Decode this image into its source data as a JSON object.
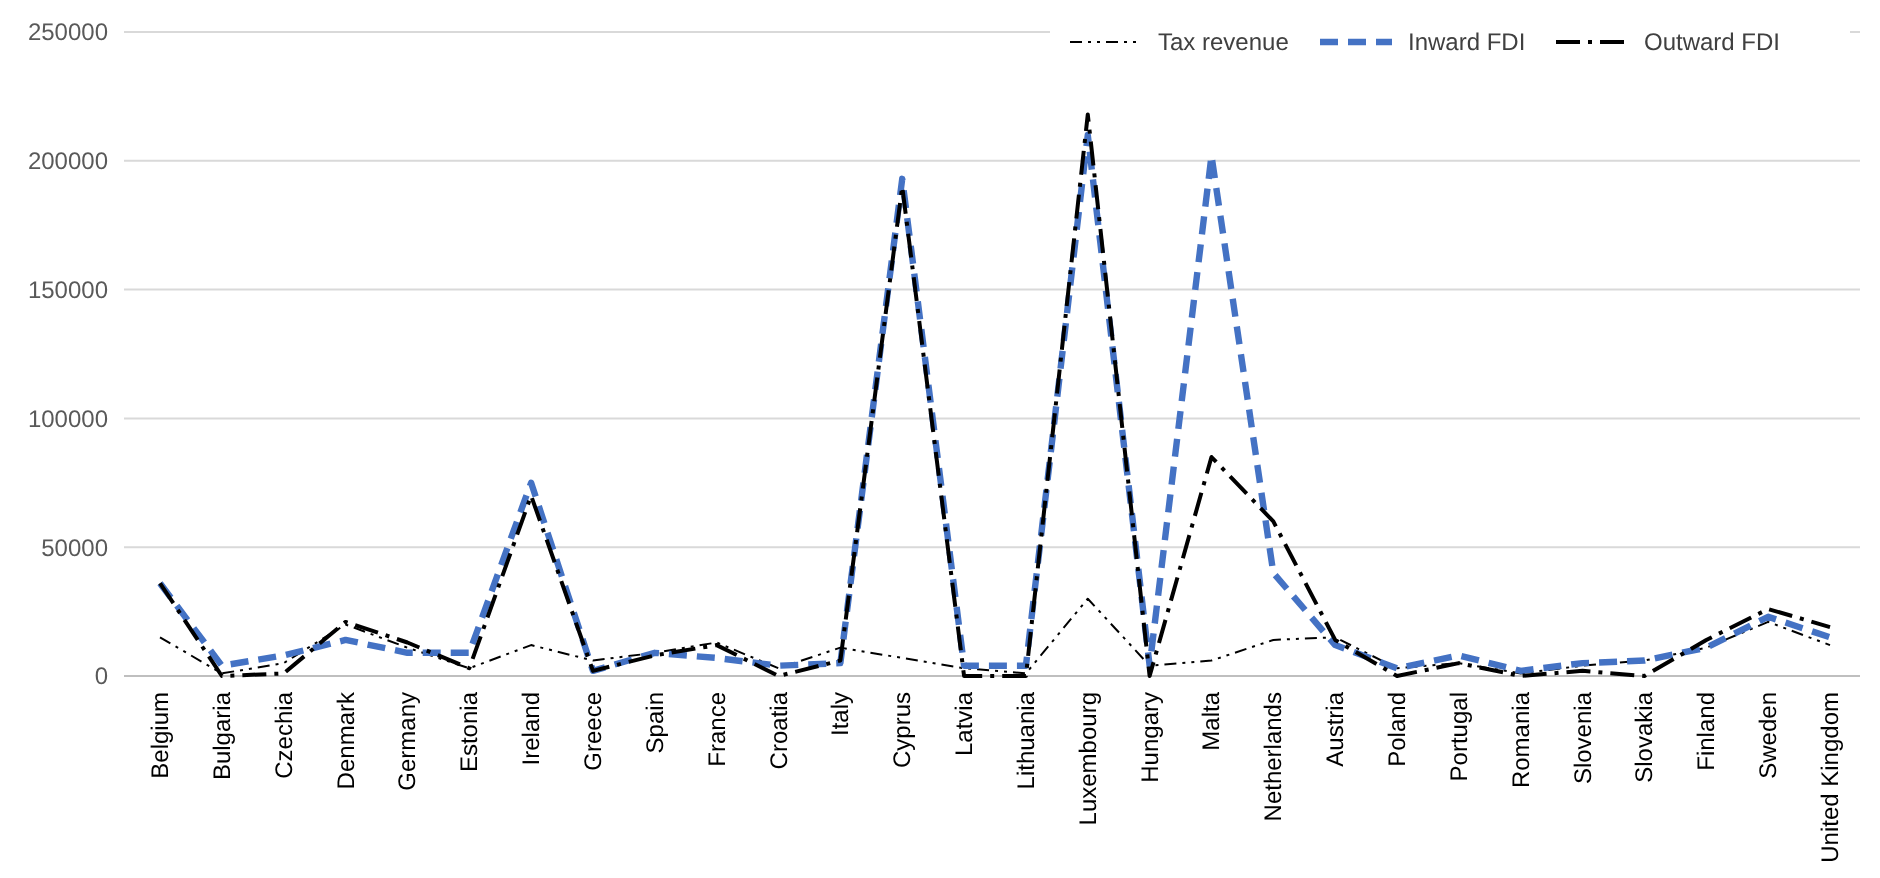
{
  "chart_data": {
    "type": "line",
    "categories": [
      "Belgium",
      "Bulgaria",
      "Czechia",
      "Denmark",
      "Germany",
      "Estonia",
      "Ireland",
      "Greece",
      "Spain",
      "France",
      "Croatia",
      "Italy",
      "Cyprus",
      "Latvia",
      "Lithuania",
      "Luxembourg",
      "Hungary",
      "Malta",
      "Netherlands",
      "Austria",
      "Poland",
      "Portugal",
      "Romania",
      "Slovenia",
      "Slovakia",
      "Finland",
      "Sweden",
      "United Kingdom"
    ],
    "series": [
      {
        "name": "Tax revenue",
        "color": "#000000",
        "line_style": "dotted",
        "values": [
          15000,
          1000,
          5000,
          20000,
          11000,
          3000,
          12000,
          6000,
          9000,
          13000,
          3000,
          11000,
          7000,
          3000,
          1000,
          30000,
          4000,
          6000,
          14000,
          15000,
          3000,
          5000,
          1000,
          4000,
          6000,
          11000,
          21000,
          12000
        ]
      },
      {
        "name": "Inward FDI",
        "color": "#4472c4",
        "line_style": "dashed",
        "values": [
          36000,
          4000,
          8000,
          14000,
          9000,
          9000,
          75000,
          2000,
          9000,
          7000,
          4000,
          5000,
          193000,
          4000,
          4000,
          210000,
          4000,
          202000,
          40000,
          12000,
          3000,
          8000,
          2000,
          5000,
          6000,
          11000,
          23000,
          15000
        ]
      },
      {
        "name": "Outward FDI",
        "color": "#000000",
        "line_style": "dashed",
        "values": [
          36000,
          0,
          1000,
          21000,
          13000,
          3000,
          70000,
          2000,
          8000,
          12000,
          0,
          6000,
          190000,
          0,
          0,
          218000,
          0,
          85000,
          60000,
          14000,
          0,
          5000,
          0,
          2000,
          0,
          14000,
          26000,
          19000
        ]
      }
    ],
    "ylim": [
      0,
      250000
    ],
    "yticks": [
      0,
      50000,
      100000,
      150000,
      200000,
      250000
    ],
    "grid": "y",
    "legend": "top right",
    "marker": "none"
  }
}
